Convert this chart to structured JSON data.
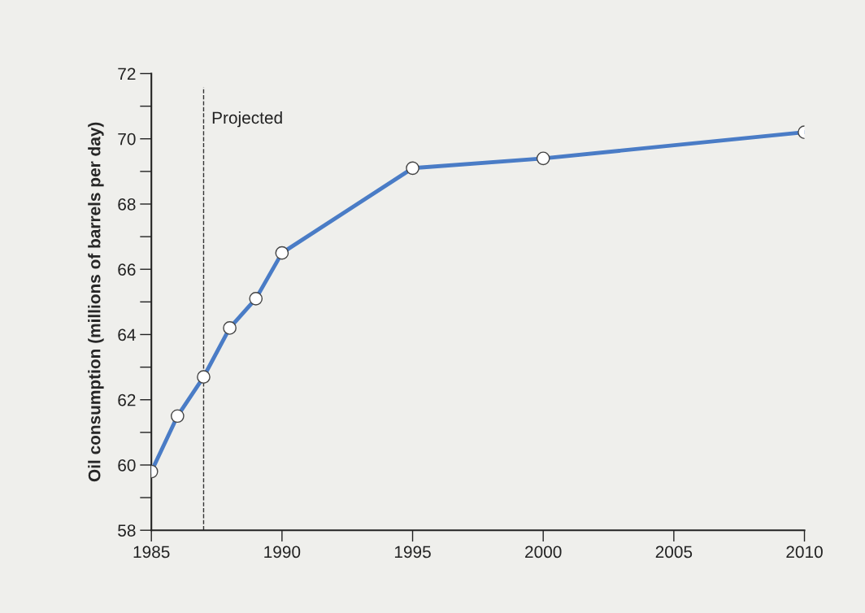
{
  "chart_data": {
    "type": "line",
    "ylabel": "Oil consumption (millions of barrels per day)",
    "x": [
      1985,
      1986,
      1987,
      1988,
      1989,
      1990,
      1995,
      2000,
      2010
    ],
    "series": [
      {
        "color": "#4a7cc6",
        "values": [
          59.8,
          61.5,
          62.7,
          64.2,
          65.1,
          66.5,
          69.1,
          69.4,
          70.2
        ]
      }
    ],
    "xlim": [
      1985,
      2010
    ],
    "xticks": [
      1985,
      1990,
      1995,
      2000,
      2005,
      2010
    ],
    "ylim": [
      58,
      72
    ],
    "yticks": [
      58,
      {
        "value": 59,
        "label": null
      },
      60,
      {
        "value": 61,
        "label": null
      },
      62,
      {
        "value": 63,
        "label": null
      },
      64,
      {
        "value": 65,
        "label": null
      },
      66,
      {
        "value": 67,
        "label": null
      },
      68,
      {
        "value": 69,
        "label": null
      },
      70,
      {
        "value": 71,
        "label": null
      },
      72
    ],
    "ref_lines": [
      {
        "axis": "x",
        "value": 1987,
        "label": "Projected",
        "line_style": "dashed",
        "color": "#333333"
      }
    ],
    "marker": "circle",
    "line_style": "solid",
    "grid": false,
    "legend": false
  }
}
